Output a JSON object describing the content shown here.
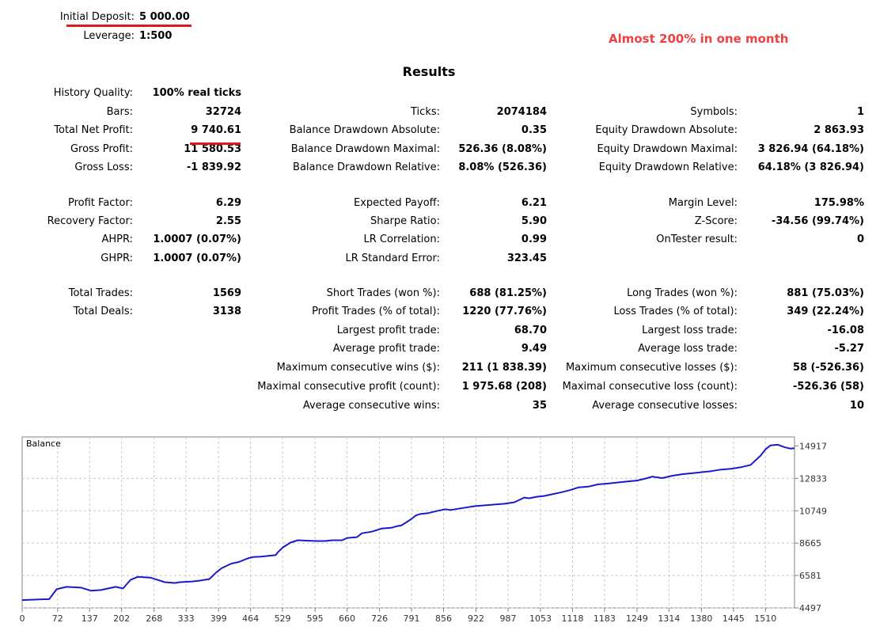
{
  "header": {
    "initial_deposit_label": "Initial Deposit:",
    "initial_deposit_value": "5 000.00",
    "leverage_label": "Leverage:",
    "leverage_value": "1:500",
    "note": "Almost 200% in one month"
  },
  "results_title": "Results",
  "col1": [
    {
      "label": "History Quality:",
      "value": "100% real ticks"
    },
    {
      "label": "Bars:",
      "value": "32724"
    },
    {
      "label": "Total Net Profit:",
      "value": "9 740.61"
    },
    {
      "label": "Gross Profit:",
      "value": "11 580.53"
    },
    {
      "label": "Gross Loss:",
      "value": "-1 839.92"
    },
    {
      "label": "Profit Factor:",
      "value": "6.29"
    },
    {
      "label": "Recovery Factor:",
      "value": "2.55"
    },
    {
      "label": "AHPR:",
      "value": "1.0007 (0.07%)"
    },
    {
      "label": "GHPR:",
      "value": "1.0007 (0.07%)"
    },
    {
      "label": "Total Trades:",
      "value": "1569"
    },
    {
      "label": "Total Deals:",
      "value": "3138"
    }
  ],
  "col2": [
    {
      "label": "Ticks:",
      "value": "2074184"
    },
    {
      "label": "Balance Drawdown Absolute:",
      "value": "0.35"
    },
    {
      "label": "Balance Drawdown Maximal:",
      "value": "526.36 (8.08%)"
    },
    {
      "label": "Balance Drawdown Relative:",
      "value": "8.08% (526.36)"
    },
    {
      "label": "Expected Payoff:",
      "value": "6.21"
    },
    {
      "label": "Sharpe Ratio:",
      "value": "5.90"
    },
    {
      "label": "LR Correlation:",
      "value": "0.99"
    },
    {
      "label": "LR Standard Error:",
      "value": "323.45"
    },
    {
      "label": "Short Trades (won %):",
      "value": "688 (81.25%)"
    },
    {
      "label": "Profit Trades (% of total):",
      "value": "1220 (77.76%)"
    },
    {
      "label": "Largest profit trade:",
      "value": "68.70"
    },
    {
      "label": "Average profit trade:",
      "value": "9.49"
    },
    {
      "label": "Maximum consecutive wins ($):",
      "value": "211 (1 838.39)"
    },
    {
      "label": "Maximal consecutive profit (count):",
      "value": "1 975.68 (208)"
    },
    {
      "label": "Average consecutive wins:",
      "value": "35"
    }
  ],
  "col3": [
    {
      "label": "Symbols:",
      "value": "1"
    },
    {
      "label": "Equity Drawdown Absolute:",
      "value": "2 863.93"
    },
    {
      "label": "Equity Drawdown Maximal:",
      "value": "3 826.94 (64.18%)"
    },
    {
      "label": "Equity Drawdown Relative:",
      "value": "64.18% (3 826.94)"
    },
    {
      "label": "Margin Level:",
      "value": "175.98%"
    },
    {
      "label": "Z-Score:",
      "value": "-34.56 (99.74%)"
    },
    {
      "label": "OnTester result:",
      "value": "0"
    },
    {
      "label": "Long Trades (won %):",
      "value": "881 (75.03%)"
    },
    {
      "label": "Loss Trades (% of total):",
      "value": "349 (22.24%)"
    },
    {
      "label": "Largest loss trade:",
      "value": "-16.08"
    },
    {
      "label": "Average loss trade:",
      "value": "-5.27"
    },
    {
      "label": "Maximum consecutive losses ($):",
      "value": "58 (-526.36)"
    },
    {
      "label": "Maximal consecutive loss (count):",
      "value": "-526.36 (58)"
    },
    {
      "label": "Average consecutive losses:",
      "value": "10"
    }
  ],
  "colors": {
    "accent_red": "#e01a1a",
    "note_red": "#f04040",
    "line_blue": "#1a1acc"
  },
  "chart_data": {
    "type": "line",
    "title": "Balance",
    "xlabel": "",
    "ylabel": "",
    "x_ticks": [
      "0",
      "72",
      "137",
      "202",
      "268",
      "333",
      "399",
      "464",
      "529",
      "595",
      "660",
      "726",
      "791",
      "856",
      "922",
      "987",
      "1053",
      "1118",
      "1183",
      "1249",
      "1314",
      "1380",
      "1445",
      "1510"
    ],
    "y_ticks": [
      "14917",
      "12833",
      "10749",
      "8665",
      "6581",
      "4497"
    ],
    "xlim": [
      0,
      1569
    ],
    "ylim": [
      4497,
      15500
    ],
    "grid": true,
    "series": [
      {
        "x": [
          0,
          40,
          55,
          70,
          90,
          120,
          140,
          160,
          190,
          205,
          220,
          235,
          260,
          270,
          290,
          310,
          320,
          345,
          360,
          380,
          395,
          405,
          415,
          425,
          440,
          460,
          470,
          485,
          500,
          515,
          520,
          530,
          545,
          560,
          580,
          600,
          615,
          630,
          650,
          660,
          680,
          690,
          710,
          730,
          750,
          760,
          770,
          790,
          800,
          810,
          825,
          845,
          860,
          870,
          880,
          900,
          920,
          940,
          960,
          980,
          1000,
          1020,
          1030,
          1045,
          1060,
          1075,
          1090,
          1110,
          1130,
          1150,
          1170,
          1190,
          1220,
          1250,
          1270,
          1280,
          1290,
          1300,
          1320,
          1340,
          1370,
          1400,
          1420,
          1440,
          1460,
          1480,
          1500,
          1510,
          1520,
          1535,
          1548,
          1560,
          1569
        ],
        "values": [
          5000,
          5050,
          5060,
          5700,
          5850,
          5800,
          5600,
          5650,
          5850,
          5750,
          6300,
          6500,
          6450,
          6350,
          6150,
          6100,
          6150,
          6200,
          6250,
          6350,
          6800,
          7050,
          7200,
          7350,
          7450,
          7700,
          7780,
          7800,
          7850,
          7900,
          8100,
          8400,
          8700,
          8850,
          8820,
          8800,
          8800,
          8850,
          8850,
          9000,
          9050,
          9300,
          9400,
          9600,
          9650,
          9750,
          9800,
          10200,
          10450,
          10550,
          10600,
          10750,
          10850,
          10800,
          10850,
          10950,
          11050,
          11100,
          11150,
          11200,
          11300,
          11600,
          11550,
          11650,
          11700,
          11800,
          11900,
          12050,
          12250,
          12300,
          12450,
          12500,
          12600,
          12700,
          12850,
          12950,
          12900,
          12850,
          13000,
          13100,
          13200,
          13300,
          13400,
          13450,
          13550,
          13700,
          14300,
          14700,
          14950,
          15000,
          14850,
          14750,
          14770
        ]
      }
    ]
  }
}
